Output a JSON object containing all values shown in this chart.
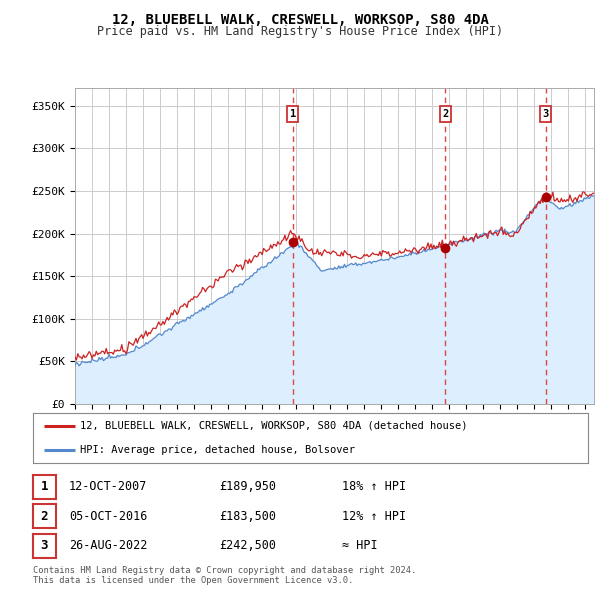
{
  "title": "12, BLUEBELL WALK, CRESWELL, WORKSOP, S80 4DA",
  "subtitle": "Price paid vs. HM Land Registry's House Price Index (HPI)",
  "ylabel_ticks": [
    "£0",
    "£50K",
    "£100K",
    "£150K",
    "£200K",
    "£250K",
    "£300K",
    "£350K"
  ],
  "ytick_vals": [
    0,
    50000,
    100000,
    150000,
    200000,
    250000,
    300000,
    350000
  ],
  "ylim": [
    0,
    370000
  ],
  "xlim_start": 1995.0,
  "xlim_end": 2025.5,
  "sale_dates": [
    2007.79,
    2016.76,
    2022.65
  ],
  "sale_prices": [
    189950,
    183500,
    242500
  ],
  "sale_labels": [
    "1",
    "2",
    "3"
  ],
  "vline_color": "#dd4444",
  "sale_marker_color": "#aa0000",
  "hpi_color": "#5588cc",
  "hpi_fill_color": "#ddeeff",
  "price_color": "#cc2222",
  "legend_label_price": "12, BLUEBELL WALK, CRESWELL, WORKSOP, S80 4DA (detached house)",
  "legend_label_hpi": "HPI: Average price, detached house, Bolsover",
  "table_rows": [
    {
      "label": "1",
      "date": "12-OCT-2007",
      "price": "£189,950",
      "hpi": "18% ↑ HPI"
    },
    {
      "label": "2",
      "date": "05-OCT-2016",
      "price": "£183,500",
      "hpi": "12% ↑ HPI"
    },
    {
      "label": "3",
      "date": "26-AUG-2022",
      "price": "£242,500",
      "hpi": "≈ HPI"
    }
  ],
  "footer": "Contains HM Land Registry data © Crown copyright and database right 2024.\nThis data is licensed under the Open Government Licence v3.0.",
  "background_color": "#ffffff",
  "grid_color": "#cccccc"
}
